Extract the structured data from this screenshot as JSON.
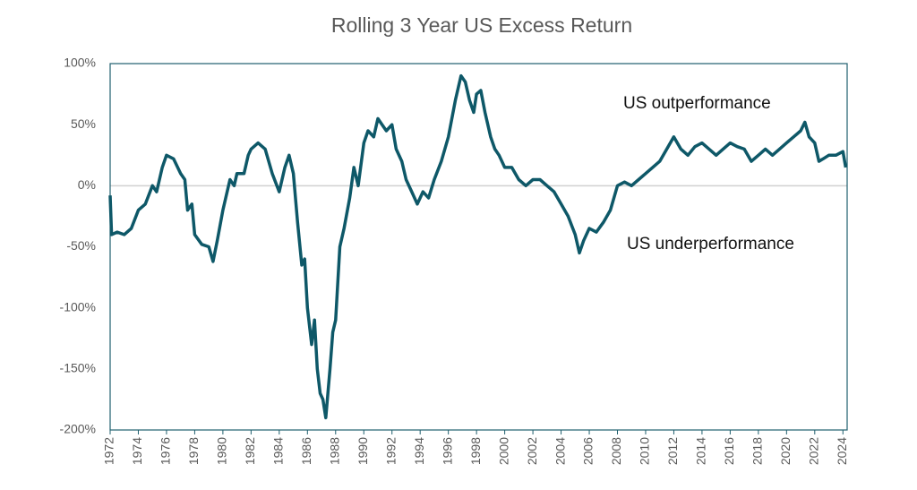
{
  "chart_data": {
    "type": "line",
    "title": "Rolling 3 Year US Excess Return",
    "annotations": [
      "US  outperformance",
      "US  underperformance"
    ],
    "color": "#0e5868",
    "x": [
      1972.0,
      1972.1,
      1972.5,
      1973.0,
      1973.5,
      1974.0,
      1974.5,
      1975.0,
      1975.3,
      1975.7,
      1976.0,
      1976.5,
      1977.0,
      1977.3,
      1977.5,
      1977.8,
      1978.0,
      1978.5,
      1979.0,
      1979.3,
      1979.6,
      1980.0,
      1980.5,
      1980.8,
      1981.0,
      1981.5,
      1981.8,
      1982.0,
      1982.5,
      1983.0,
      1983.5,
      1984.0,
      1984.4,
      1984.7,
      1985.0,
      1985.3,
      1985.6,
      1985.8,
      1986.0,
      1986.3,
      1986.5,
      1986.7,
      1986.9,
      1987.1,
      1987.3,
      1987.6,
      1987.8,
      1988.0,
      1988.3,
      1988.6,
      1989.0,
      1989.3,
      1989.6,
      1990.0,
      1990.3,
      1990.7,
      1991.0,
      1991.3,
      1991.6,
      1992.0,
      1992.3,
      1992.7,
      1993.0,
      1993.4,
      1993.8,
      1994.2,
      1994.6,
      1995.0,
      1995.5,
      1996.0,
      1996.5,
      1996.9,
      1997.2,
      1997.5,
      1997.8,
      1998.0,
      1998.3,
      1998.6,
      1999.0,
      1999.3,
      1999.6,
      2000.0,
      2000.5,
      2001.0,
      2001.5,
      2002.0,
      2002.5,
      2003.0,
      2003.5,
      2004.0,
      2004.5,
      2005.0,
      2005.3,
      2005.6,
      2006.0,
      2006.5,
      2007.0,
      2007.5,
      2008.0,
      2008.5,
      2009.0,
      2009.5,
      2010.0,
      2010.5,
      2011.0,
      2011.5,
      2012.0,
      2012.5,
      2013.0,
      2013.5,
      2014.0,
      2014.5,
      2015.0,
      2015.5,
      2016.0,
      2016.5,
      2017.0,
      2017.5,
      2018.0,
      2018.5,
      2019.0,
      2019.5,
      2020.0,
      2020.5,
      2021.0,
      2021.3,
      2021.6,
      2022.0,
      2022.3,
      2022.6,
      2023.0,
      2023.5,
      2024.0,
      2024.2
    ],
    "values": [
      -8,
      -40,
      -38,
      -40,
      -35,
      -20,
      -15,
      0,
      -5,
      15,
      25,
      22,
      10,
      5,
      -20,
      -15,
      -40,
      -48,
      -50,
      -62,
      -45,
      -20,
      5,
      0,
      10,
      10,
      25,
      30,
      35,
      30,
      10,
      -5,
      15,
      25,
      10,
      -30,
      -65,
      -60,
      -100,
      -130,
      -110,
      -150,
      -170,
      -175,
      -190,
      -150,
      -120,
      -110,
      -50,
      -35,
      -10,
      15,
      0,
      35,
      45,
      40,
      55,
      50,
      45,
      50,
      30,
      20,
      5,
      -5,
      -15,
      -5,
      -10,
      5,
      20,
      40,
      70,
      90,
      85,
      70,
      60,
      75,
      78,
      60,
      40,
      30,
      25,
      15,
      15,
      5,
      0,
      5,
      5,
      0,
      -5,
      -15,
      -25,
      -40,
      -55,
      -45,
      -35,
      -38,
      -30,
      -20,
      0,
      3,
      0,
      5,
      10,
      15,
      20,
      30,
      40,
      30,
      25,
      32,
      35,
      30,
      25,
      30,
      35,
      32,
      30,
      20,
      25,
      30,
      25,
      30,
      35,
      40,
      45,
      52,
      40,
      35,
      20,
      22,
      25,
      25,
      28,
      15
    ],
    "xlim": [
      1972,
      2024.3
    ],
    "xticks": [
      1972,
      1974,
      1976,
      1978,
      1980,
      1982,
      1984,
      1986,
      1988,
      1990,
      1992,
      1994,
      1996,
      1998,
      2000,
      2002,
      2004,
      2006,
      2008,
      2010,
      2012,
      2014,
      2016,
      2018,
      2020,
      2022,
      2024
    ],
    "ylim": [
      -200,
      100
    ],
    "yticks": [
      {
        "value": -200,
        "label": "-200%"
      },
      {
        "value": -150,
        "label": "-150%"
      },
      {
        "value": -100,
        "label": "-100%"
      },
      {
        "value": -50,
        "label": "-50%"
      },
      {
        "value": 0,
        "label": "0%"
      },
      {
        "value": 50,
        "label": "50%"
      },
      {
        "value": 100,
        "label": "100%"
      }
    ],
    "grid": false,
    "zero_line": true
  }
}
